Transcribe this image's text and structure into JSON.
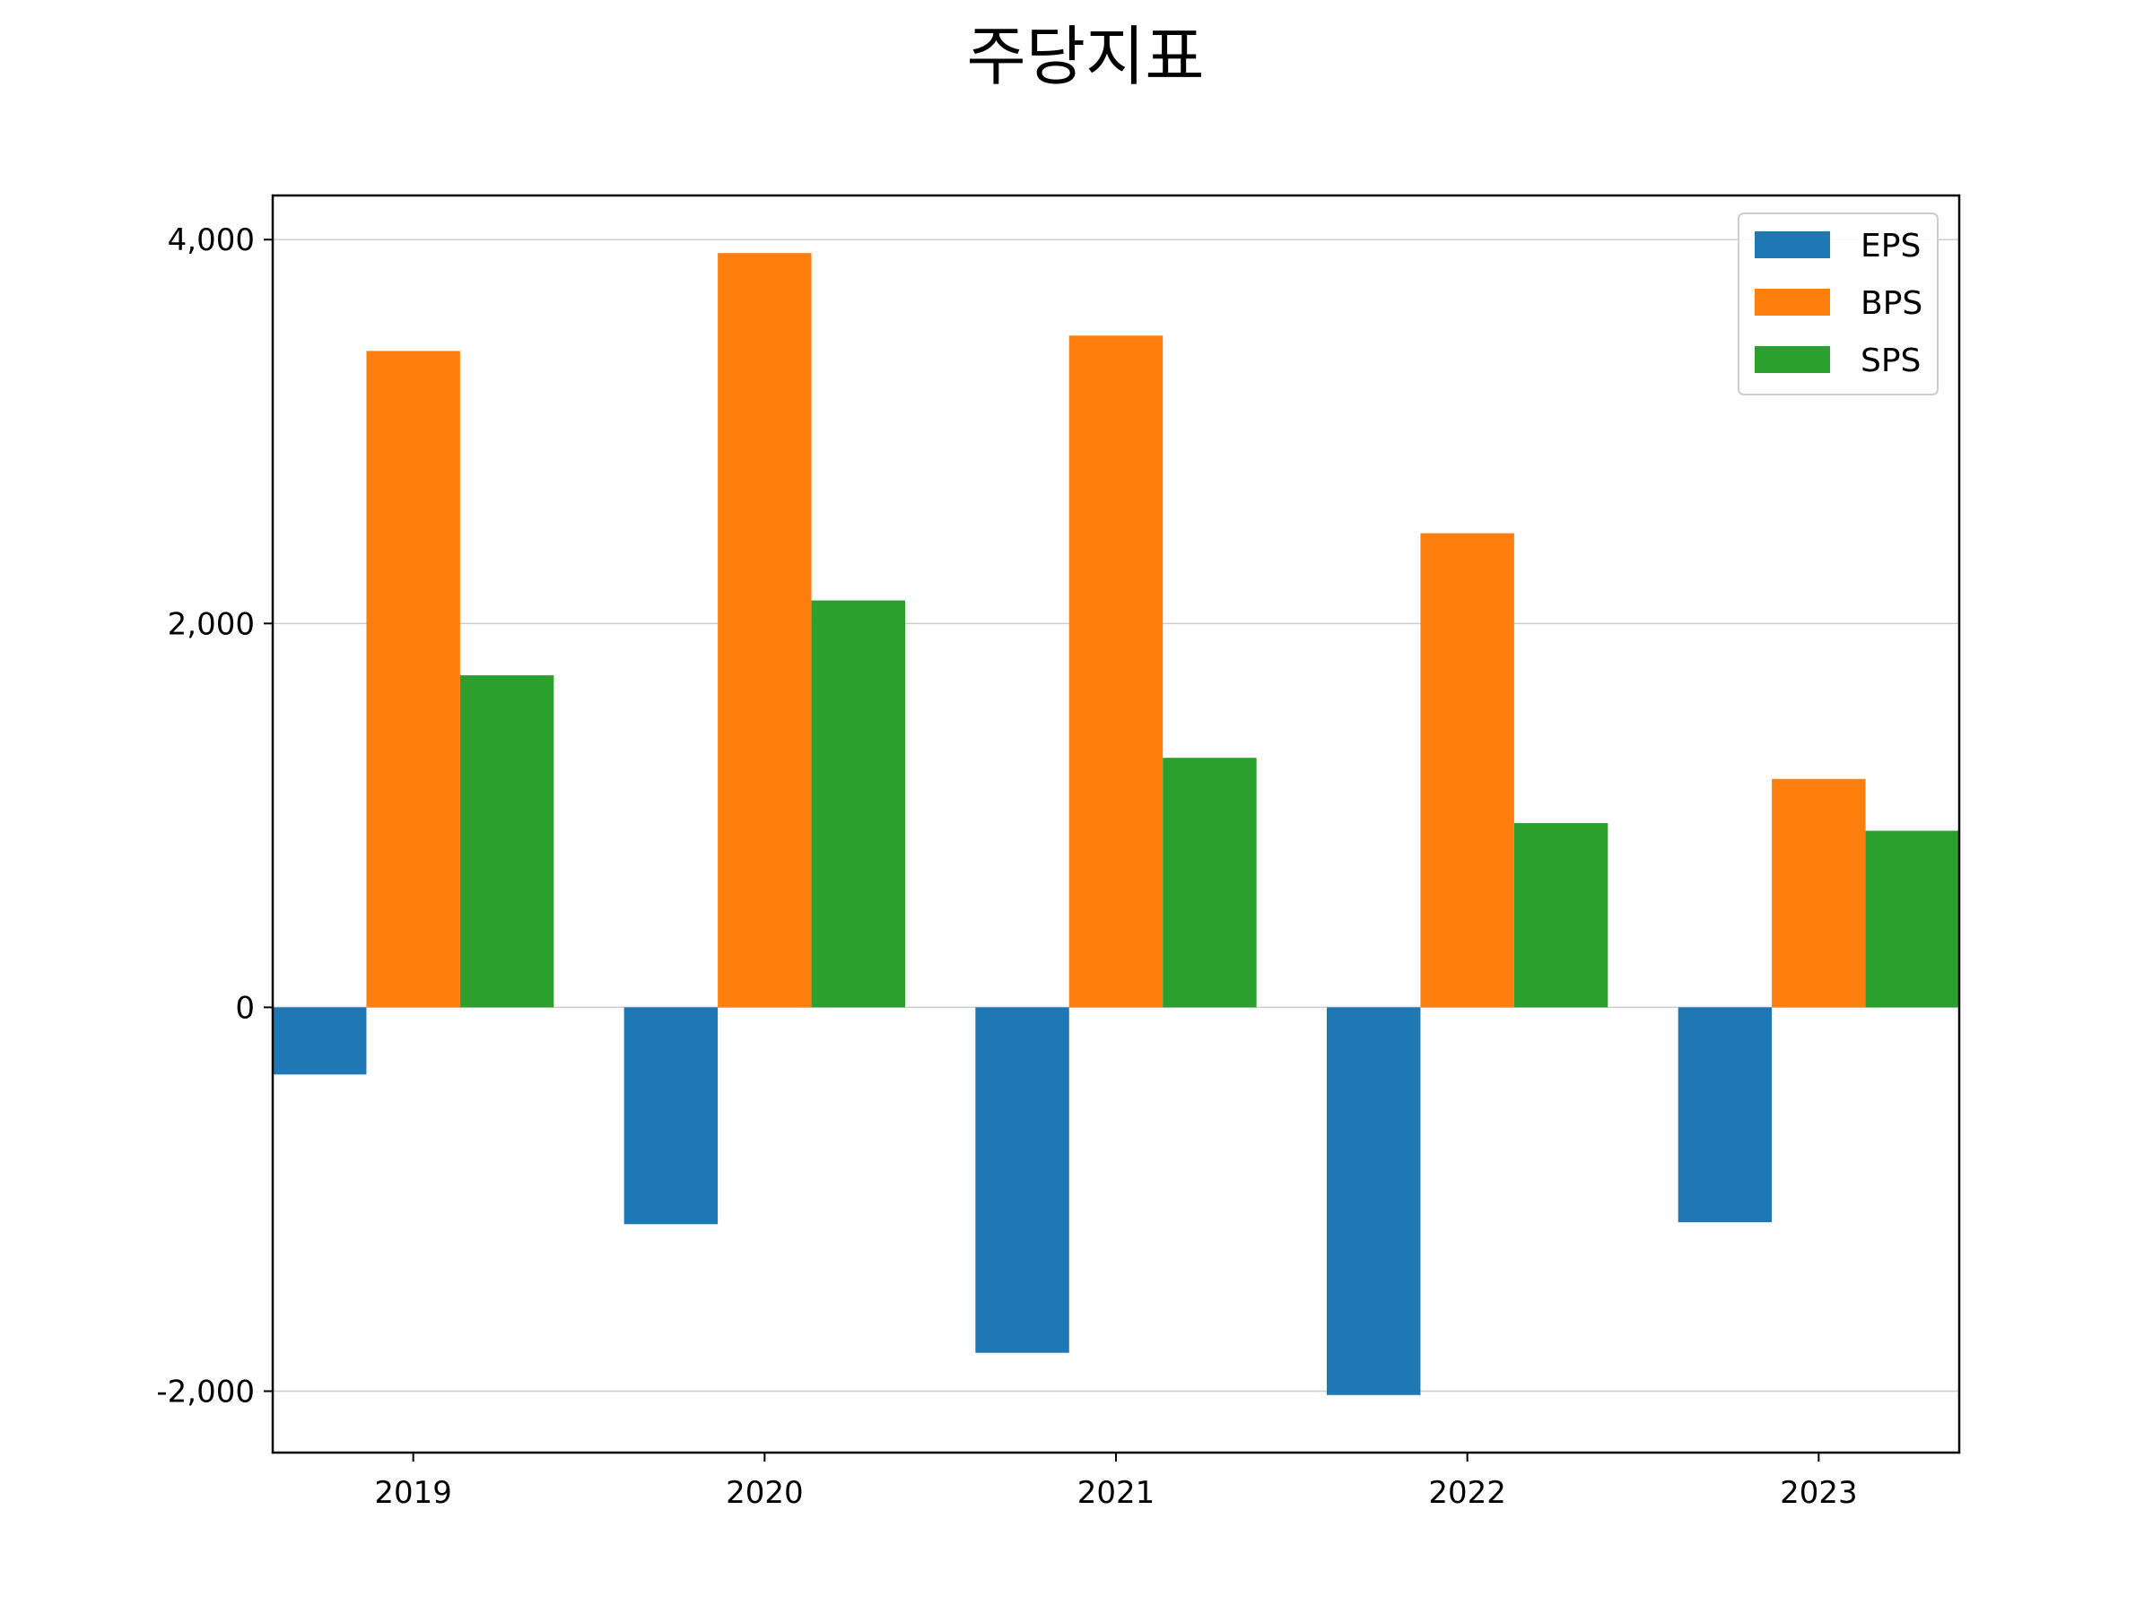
{
  "chart_data": {
    "type": "bar",
    "title": "주당지표",
    "xlabel": "",
    "ylabel": "",
    "categories": [
      "2019",
      "2020",
      "2021",
      "2022",
      "2023"
    ],
    "series": [
      {
        "name": "EPS",
        "color": "#1f77b4",
        "values": [
          -350,
          -1130,
          -1800,
          -2020,
          -1120
        ]
      },
      {
        "name": "BPS",
        "color": "#ff7f0e",
        "values": [
          3420,
          3930,
          3500,
          2470,
          1190
        ]
      },
      {
        "name": "SPS",
        "color": "#2ca02c",
        "values": [
          1730,
          2120,
          1300,
          960,
          920
        ]
      }
    ],
    "ylim": [
      -2320,
      4230
    ],
    "yticks": [
      -2000,
      0,
      2000,
      4000
    ],
    "ytick_labels": [
      "-2,000",
      "0",
      "2,000",
      "4,000"
    ],
    "grid": "y",
    "legend": "top-right"
  }
}
